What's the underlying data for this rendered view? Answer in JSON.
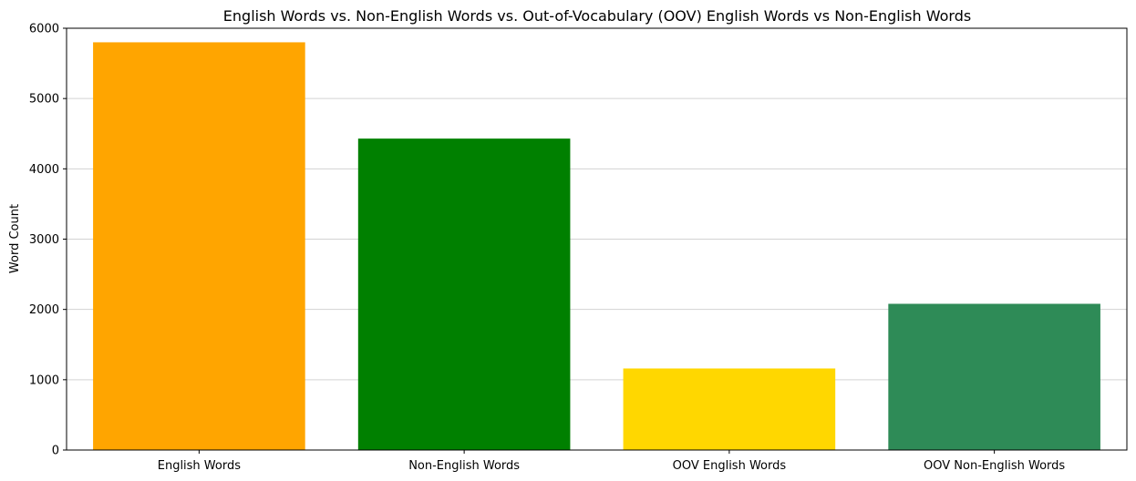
{
  "chart_data": {
    "type": "bar",
    "title": "English Words vs. Non-English Words vs. Out-of-Vocabulary (OOV) English Words vs Non-English Words",
    "xlabel": "",
    "ylabel": "Word Count",
    "categories": [
      "English Words",
      "Non-English Words",
      "OOV English Words",
      "OOV Non-English Words"
    ],
    "values": [
      5800,
      4430,
      1160,
      2080
    ],
    "colors": [
      "#ffa500",
      "#008000",
      "#ffd700",
      "#2e8b57"
    ],
    "ylim": [
      0,
      6000
    ],
    "yticks": [
      "0",
      "1000",
      "2000",
      "3000",
      "4000",
      "5000",
      "6000"
    ],
    "grid": "y",
    "grid_color": "#d3d3d3",
    "legend": "none"
  }
}
